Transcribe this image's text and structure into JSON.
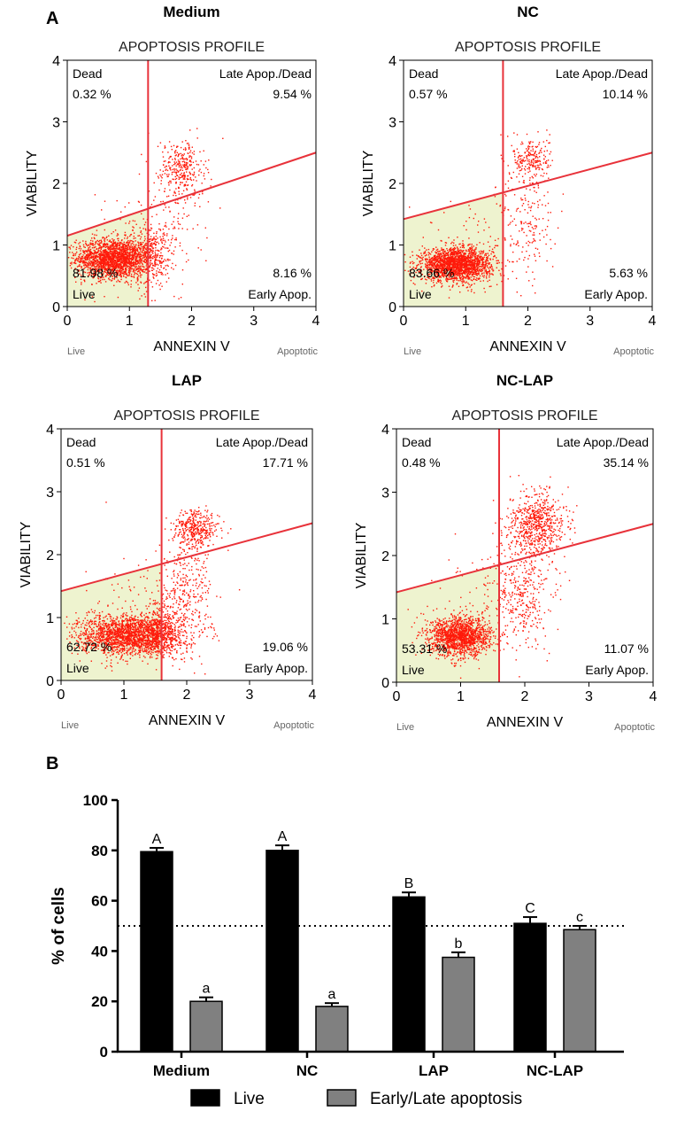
{
  "panel_a_label": "A",
  "panel_b_label": "B",
  "chart_data": [
    {
      "type": "scatter",
      "panel": "Medium",
      "title": "Medium",
      "subtitle": "APOPTOSIS PROFILE",
      "xlabel": "ANNEXIN V",
      "ylabel": "VIABILITY",
      "xlim": [
        0,
        4
      ],
      "ylim": [
        0,
        4
      ],
      "ticks": [
        "0",
        "1",
        "2",
        "3",
        "4"
      ],
      "x_left_label": "Live",
      "x_right_label": "Apoptotic",
      "gate_x": 1.3,
      "gate_line": [
        [
          0,
          1.15
        ],
        [
          4,
          2.5
        ]
      ],
      "clusters": [
        {
          "cx": 0.75,
          "cy": 0.78,
          "sx": 0.3,
          "sy": 0.16,
          "n": 1900
        },
        {
          "cx": 1.35,
          "cy": 0.82,
          "sx": 0.14,
          "sy": 0.25,
          "n": 260
        },
        {
          "cx": 1.85,
          "cy": 2.25,
          "sx": 0.18,
          "sy": 0.22,
          "n": 280
        },
        {
          "cx": 1.7,
          "cy": 1.5,
          "sx": 0.25,
          "sy": 0.55,
          "n": 160
        },
        {
          "cx": 1.0,
          "cy": 1.0,
          "sx": 0.55,
          "sy": 0.45,
          "n": 90
        }
      ],
      "quadrants": {
        "dead": {
          "label": "Dead",
          "pct": "0.32 %"
        },
        "late": {
          "label": "Late Apop./Dead",
          "pct": "9.54 %"
        },
        "live": {
          "label": "Live",
          "pct": "81.98 %"
        },
        "early": {
          "label": "Early Apop.",
          "pct": "8.16 %"
        }
      }
    },
    {
      "type": "scatter",
      "panel": "NC",
      "title": "NC",
      "subtitle": "APOPTOSIS PROFILE",
      "xlabel": "ANNEXIN V",
      "ylabel": "VIABILITY",
      "xlim": [
        0,
        4
      ],
      "ylim": [
        0,
        4
      ],
      "ticks": [
        "0",
        "1",
        "2",
        "3",
        "4"
      ],
      "x_left_label": "Live",
      "x_right_label": "Apoptotic",
      "gate_x": 1.6,
      "gate_line": [
        [
          0,
          1.42
        ],
        [
          4,
          2.5
        ]
      ],
      "clusters": [
        {
          "cx": 0.85,
          "cy": 0.68,
          "sx": 0.28,
          "sy": 0.13,
          "n": 2000
        },
        {
          "cx": 2.05,
          "cy": 2.4,
          "sx": 0.15,
          "sy": 0.18,
          "n": 220
        },
        {
          "cx": 2.0,
          "cy": 1.4,
          "sx": 0.22,
          "sy": 0.5,
          "n": 170
        },
        {
          "cx": 1.2,
          "cy": 1.0,
          "sx": 0.5,
          "sy": 0.45,
          "n": 90
        }
      ],
      "quadrants": {
        "dead": {
          "label": "Dead",
          "pct": "0.57 %"
        },
        "late": {
          "label": "Late Apop./Dead",
          "pct": "10.14 %"
        },
        "live": {
          "label": "Live",
          "pct": "83.66 %"
        },
        "early": {
          "label": "Early Apop.",
          "pct": "5.63 %"
        }
      }
    },
    {
      "type": "scatter",
      "panel": "LAP",
      "title": "LAP",
      "subtitle": "APOPTOSIS PROFILE",
      "xlabel": "ANNEXIN V",
      "ylabel": "VIABILITY",
      "xlim": [
        0,
        4
      ],
      "ylim": [
        0,
        4
      ],
      "ticks": [
        "0",
        "1",
        "2",
        "3",
        "4"
      ],
      "x_left_label": "Live",
      "x_right_label": "Apoptotic",
      "gate_x": 1.6,
      "gate_line": [
        [
          0,
          1.42
        ],
        [
          4,
          2.5
        ]
      ],
      "clusters": [
        {
          "cx": 1.1,
          "cy": 0.72,
          "sx": 0.42,
          "sy": 0.16,
          "n": 2000
        },
        {
          "cx": 1.6,
          "cy": 0.8,
          "sx": 0.15,
          "sy": 0.2,
          "n": 300
        },
        {
          "cx": 2.15,
          "cy": 2.4,
          "sx": 0.18,
          "sy": 0.16,
          "n": 380
        },
        {
          "cx": 1.95,
          "cy": 1.35,
          "sx": 0.22,
          "sy": 0.42,
          "n": 320
        },
        {
          "cx": 1.3,
          "cy": 1.1,
          "sx": 0.5,
          "sy": 0.45,
          "n": 100
        }
      ],
      "quadrants": {
        "dead": {
          "label": "Dead",
          "pct": "0.51 %"
        },
        "late": {
          "label": "Late Apop./Dead",
          "pct": "17.71 %"
        },
        "live": {
          "label": "Live",
          "pct": "62.72 %"
        },
        "early": {
          "label": "Early Apop.",
          "pct": "19.06 %"
        }
      }
    },
    {
      "type": "scatter",
      "panel": "NC-LAP",
      "title": "NC-LAP",
      "subtitle": "APOPTOSIS PROFILE",
      "xlabel": "ANNEXIN V",
      "ylabel": "VIABILITY",
      "xlim": [
        0,
        4
      ],
      "ylim": [
        0,
        4
      ],
      "ticks": [
        "0",
        "1",
        "2",
        "3",
        "4"
      ],
      "x_left_label": "Live",
      "x_right_label": "Apoptotic",
      "gate_x": 1.6,
      "gate_line": [
        [
          0,
          1.42
        ],
        [
          4,
          2.5
        ]
      ],
      "clusters": [
        {
          "cx": 1.0,
          "cy": 0.72,
          "sx": 0.24,
          "sy": 0.15,
          "n": 1500
        },
        {
          "cx": 2.2,
          "cy": 2.5,
          "sx": 0.22,
          "sy": 0.26,
          "n": 650
        },
        {
          "cx": 1.95,
          "cy": 1.45,
          "sx": 0.24,
          "sy": 0.45,
          "n": 380
        },
        {
          "cx": 1.3,
          "cy": 1.1,
          "sx": 0.5,
          "sy": 0.45,
          "n": 100
        }
      ],
      "quadrants": {
        "dead": {
          "label": "Dead",
          "pct": "0.48 %"
        },
        "late": {
          "label": "Late Apop./Dead",
          "pct": "35.14 %"
        },
        "live": {
          "label": "Live",
          "pct": "53.31 %"
        },
        "early": {
          "label": "Early Apop.",
          "pct": "11.07 %"
        }
      }
    },
    {
      "type": "bar",
      "panel": "B",
      "categories": [
        "Medium",
        "NC",
        "LAP",
        "NC-LAP"
      ],
      "series": [
        {
          "name": "Live",
          "color": "#000000",
          "values": [
            79.5,
            80,
            61.5,
            51
          ],
          "errors": [
            1.5,
            2,
            1.8,
            2.5
          ],
          "labels": [
            "A",
            "A",
            "B",
            "C"
          ]
        },
        {
          "name": "Early/Late apoptosis",
          "color": "#808080",
          "values": [
            20,
            18,
            37.5,
            48.5
          ],
          "errors": [
            1.6,
            1.3,
            2,
            1.5
          ],
          "labels": [
            "a",
            "a",
            "b",
            "c"
          ]
        }
      ],
      "ylabel": "% of cells",
      "ylim": [
        0,
        100
      ],
      "yticks": [
        0,
        20,
        40,
        60,
        80,
        100
      ],
      "reference_line": 50,
      "legend_position": "bottom"
    }
  ]
}
